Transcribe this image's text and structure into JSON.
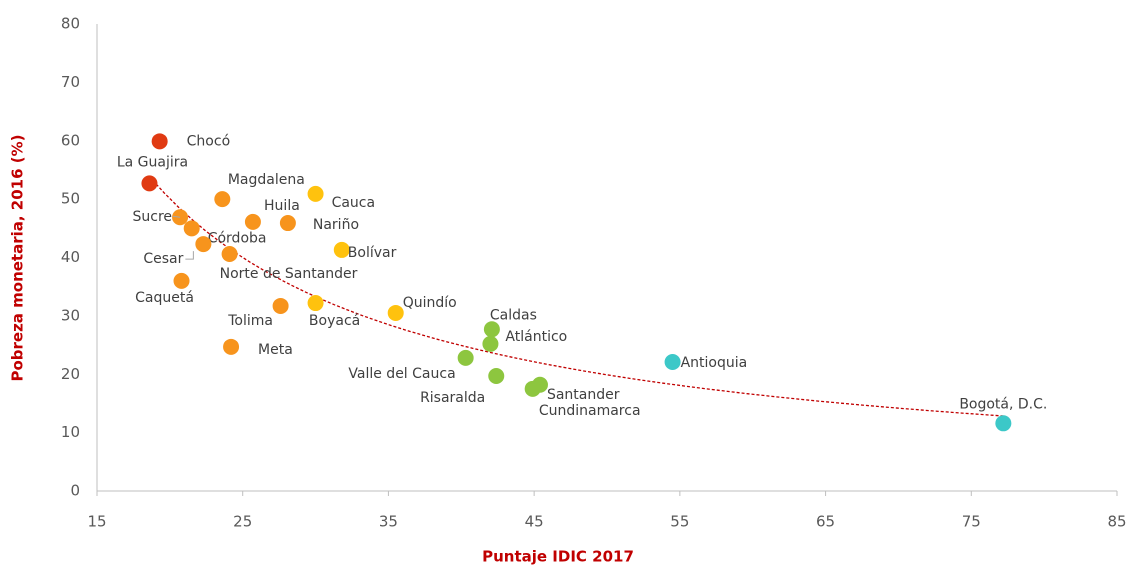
{
  "chart_data": {
    "type": "scatter",
    "xlabel": "Puntaje IDIC 2017",
    "ylabel": "Pobreza monetaria, 2016 (%)",
    "xlim": [
      15,
      85
    ],
    "xticks": [
      15,
      25,
      35,
      45,
      55,
      65,
      75,
      85
    ],
    "ylim": [
      0,
      80
    ],
    "yticks": [
      0,
      10,
      20,
      30,
      40,
      50,
      60,
      70,
      80
    ],
    "grid": false,
    "labels": [
      "Chocó",
      "La Guajira",
      "Magdalena",
      "Cauca",
      "Sucre",
      "Huila",
      "Nariño",
      "Córdoba",
      "Cesar",
      "Norte de Santander",
      "Bolívar",
      "Caquetá",
      "Tolima",
      "Boyacá",
      "Quindío",
      "Meta",
      "Caldas",
      "Atlántico",
      "Valle del Cauca",
      "Risaralda",
      "Santander",
      "Cundinamarca",
      "Antioquia",
      "Bogotá, D.C."
    ],
    "x": [
      19.3,
      18.6,
      23.6,
      30.0,
      20.7,
      25.7,
      28.1,
      21.5,
      22.3,
      24.1,
      31.8,
      20.8,
      27.6,
      30.0,
      35.5,
      24.2,
      42.1,
      42.0,
      40.3,
      42.4,
      45.4,
      44.9,
      54.5,
      77.2
    ],
    "y": [
      59.9,
      52.7,
      50.0,
      50.9,
      46.9,
      46.1,
      45.9,
      45.0,
      42.3,
      40.6,
      41.3,
      36.0,
      31.7,
      32.2,
      30.5,
      24.7,
      27.7,
      25.2,
      22.8,
      19.7,
      18.2,
      17.5,
      22.1,
      11.6
    ],
    "colors": [
      "#e03a12",
      "#e03a12",
      "#f7941d",
      "#ffc20e",
      "#f7941d",
      "#f7941d",
      "#f7941d",
      "#f7941d",
      "#f7941d",
      "#f7941d",
      "#ffc20e",
      "#f7941d",
      "#f7941d",
      "#ffc20e",
      "#ffc20e",
      "#f7941d",
      "#8dc63f",
      "#8dc63f",
      "#8dc63f",
      "#8dc63f",
      "#8dc63f",
      "#8dc63f",
      "#3cc8c8",
      "#3cc8c8"
    ],
    "trendline": true,
    "trendline_color": "#c00000"
  }
}
